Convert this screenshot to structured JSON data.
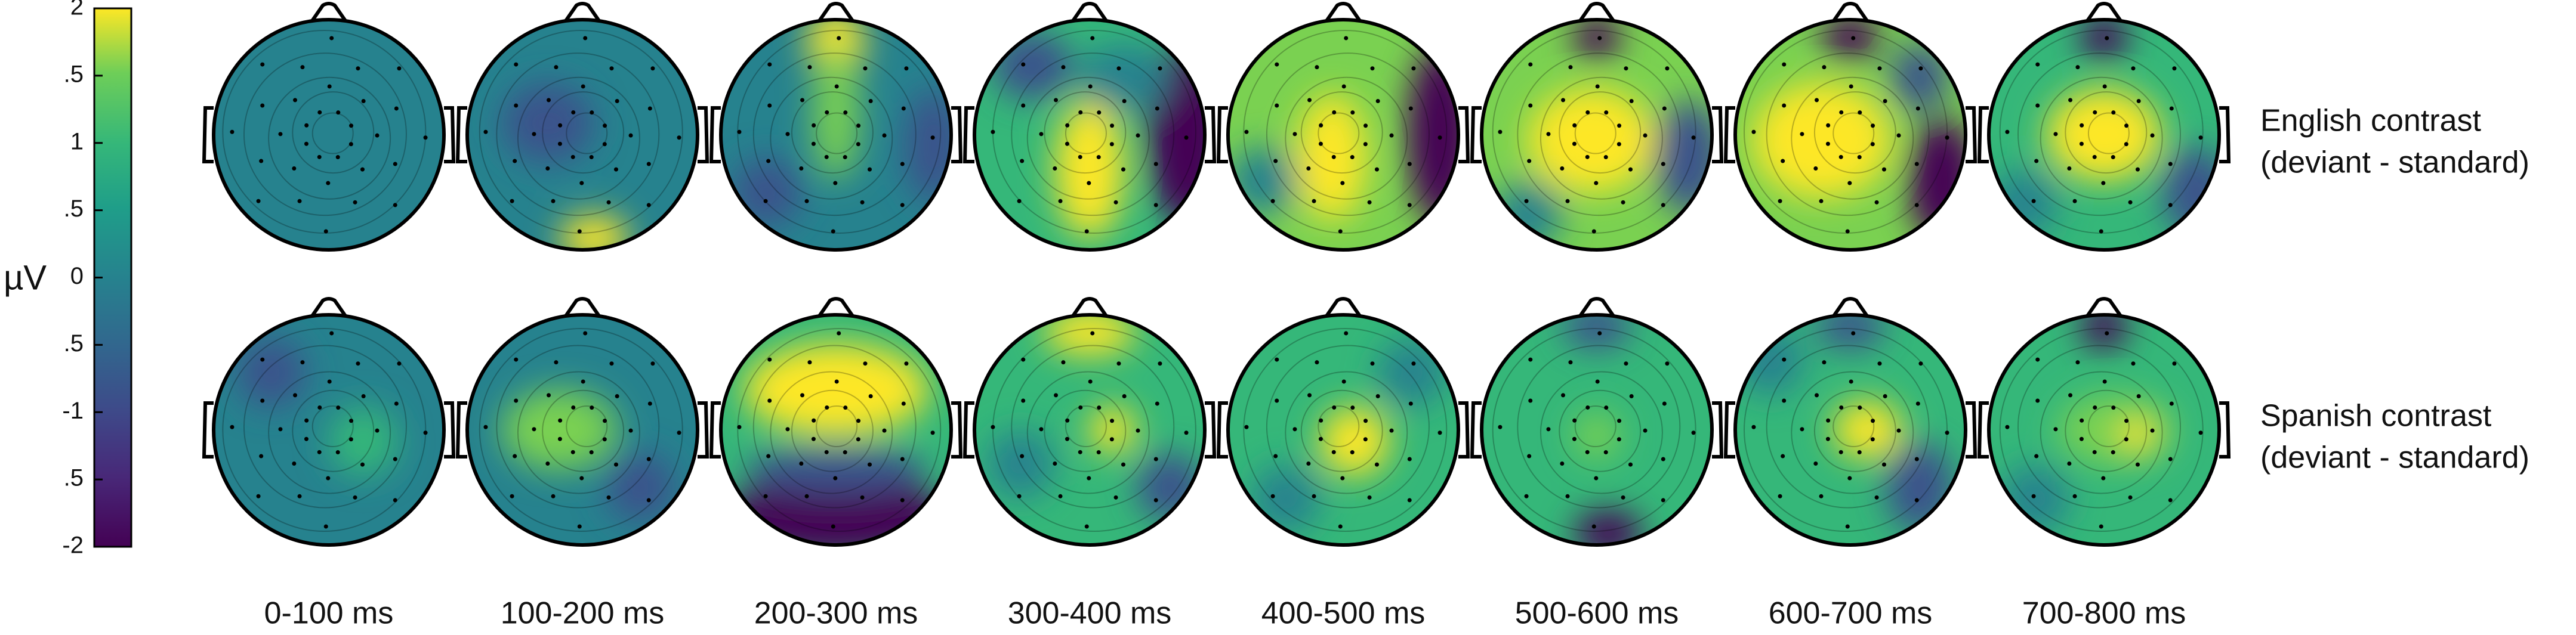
{
  "colorbar": {
    "unit": "µV",
    "range": [
      -2,
      2
    ],
    "ticks": [
      2,
      {
        "value": 1.5,
        "label": ".5"
      },
      1,
      {
        "value": 0.5,
        "label": ".5"
      },
      0,
      {
        "value": -0.5,
        "label": ".5"
      },
      -1,
      {
        "value": -1.5,
        "label": ".5"
      },
      -2
    ]
  },
  "columns": [
    "0-100 ms",
    "100-200 ms",
    "200-300 ms",
    "300-400 ms",
    "400-500 ms",
    "500-600 ms",
    "600-700 ms",
    "700-800 ms"
  ],
  "rows": [
    {
      "label": [
        "English contrast",
        "(deviant - standard)"
      ]
    },
    {
      "label": [
        "Spanish contrast",
        "(deviant - standard)"
      ]
    }
  ]
}
